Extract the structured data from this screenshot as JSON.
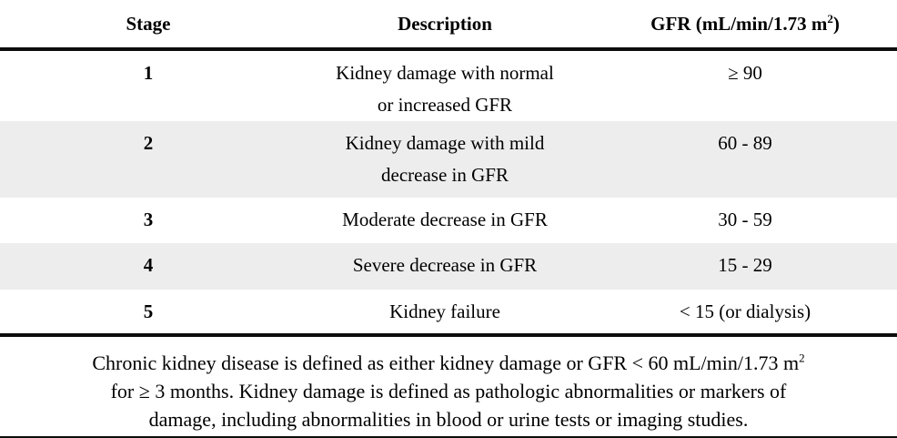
{
  "table": {
    "header": {
      "stage": "Stage",
      "description": "Description",
      "gfr_pre": "GFR (mL/min/1.73 m",
      "gfr_sup": "2",
      "gfr_post": ")"
    },
    "rows": [
      {
        "stage": "1",
        "desc_line1": "Kidney damage with normal",
        "desc_line2": "or increased GFR",
        "gfr": "≥ 90",
        "shaded": false
      },
      {
        "stage": "2",
        "desc_line1": "Kidney damage with mild",
        "desc_line2": "decrease in GFR",
        "gfr": "60 - 89",
        "shaded": true
      },
      {
        "stage": "3",
        "desc_line1": "Moderate decrease in GFR",
        "desc_line2": "",
        "gfr": "30 - 59",
        "shaded": false
      },
      {
        "stage": "4",
        "desc_line1": "Severe decrease in GFR",
        "desc_line2": "",
        "gfr": "15 - 29",
        "shaded": true
      },
      {
        "stage": "5",
        "desc_line1": "Kidney failure",
        "desc_line2": "",
        "gfr": "< 15 (or dialysis)",
        "shaded": false
      }
    ]
  },
  "footnote": {
    "line1_pre": "Chronic kidney disease is defined as either kidney damage or GFR < 60 mL/min/1.73 m",
    "line1_sup": "2",
    "line2": "for ≥ 3 months. Kidney damage is defined as pathologic abnormalities or markers of",
    "line3": "damage, including abnormalities in blood or urine tests or imaging studies."
  },
  "colors": {
    "shaded_row": "#ededed",
    "rule": "#0d0d0d",
    "text": "#000000",
    "background": "#ffffff"
  }
}
